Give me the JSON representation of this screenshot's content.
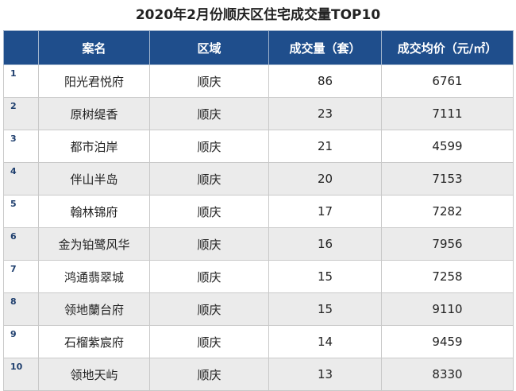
{
  "title": "2020年2月份顺庆区住宅成交量TOP10",
  "table": {
    "header": [
      "案名",
      "区域",
      "成交量（套）",
      "成交均价（元/㎡）"
    ],
    "rows": [
      [
        1,
        "阳光君悦府",
        "顺庆",
        86,
        6761
      ],
      [
        2,
        "原树缇香",
        "顺庆",
        23,
        7111
      ],
      [
        3,
        "都市泊岸",
        "顺庆",
        21,
        4599
      ],
      [
        4,
        "伴山半岛",
        "顺庆",
        20,
        7153
      ],
      [
        5,
        "翰林锦府",
        "顺庆",
        17,
        7282
      ],
      [
        6,
        "金为铂鹭风华",
        "顺庆",
        16,
        7956
      ],
      [
        7,
        "鸿通翡翠城",
        "顺庆",
        15,
        7258
      ],
      [
        8,
        "领地蘭台府",
        "顺庆",
        15,
        9110
      ],
      [
        9,
        "石榴紫宸府",
        "顺庆",
        14,
        9459
      ],
      [
        10,
        "领地天屿",
        "顺庆",
        13,
        8330
      ]
    ]
  }
}
